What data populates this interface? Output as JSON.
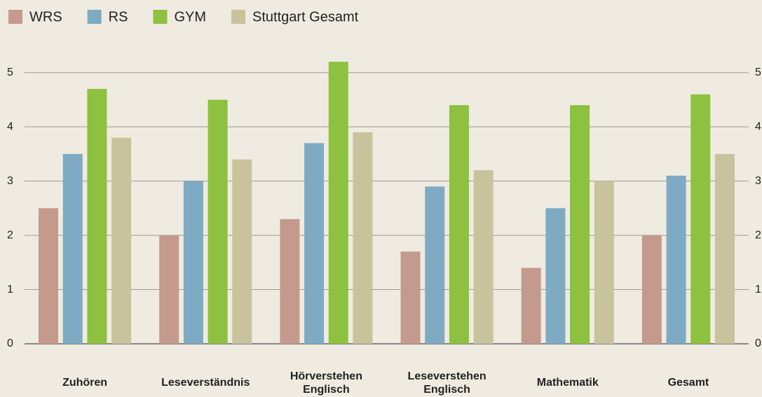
{
  "chart_data": {
    "type": "bar",
    "categories": [
      [
        "Zuhören"
      ],
      [
        "Leseverständnis"
      ],
      [
        "Hörverstehen",
        "Englisch"
      ],
      [
        "Leseverstehen",
        "Englisch"
      ],
      [
        "Mathematik"
      ],
      [
        "Gesamt"
      ]
    ],
    "series": [
      {
        "name": "WRS",
        "color": "#c49a8c",
        "values": [
          2.5,
          2.0,
          2.3,
          1.7,
          1.4,
          2.0
        ]
      },
      {
        "name": "RS",
        "color": "#7eaac4",
        "values": [
          3.5,
          3.0,
          3.7,
          2.9,
          2.5,
          3.1
        ]
      },
      {
        "name": "GYM",
        "color": "#8dc13f",
        "values": [
          4.7,
          4.5,
          5.2,
          4.4,
          4.4,
          4.6
        ]
      },
      {
        "name": "Stuttgart Gesamt",
        "color": "#c8c39d",
        "values": [
          3.8,
          3.4,
          3.9,
          3.2,
          3.0,
          3.5
        ]
      }
    ],
    "ylim": [
      0,
      5.5
    ],
    "yticks": [
      0,
      1,
      2,
      3,
      4,
      5
    ],
    "grid": true,
    "legend": "top"
  }
}
